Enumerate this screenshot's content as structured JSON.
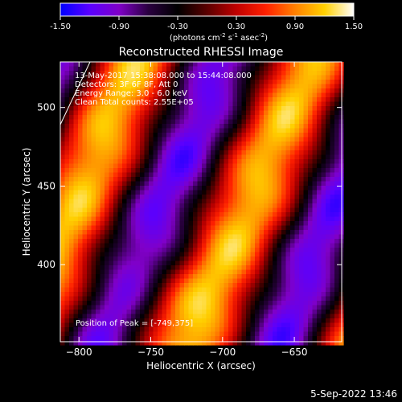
{
  "colorbar": {
    "min": -1.5,
    "max": 1.5,
    "ticks": [
      "-1.50",
      "-0.90",
      "-0.30",
      "0.30",
      "0.90",
      "1.50"
    ],
    "colormap": [
      "#0000ff",
      "#5a00ff",
      "#8000c8",
      "#2a0040",
      "#000000",
      "#5a0000",
      "#c00000",
      "#ff2000",
      "#ff8000",
      "#ffd000",
      "#ffffff"
    ],
    "unit_label": {
      "pre": "(photons cm",
      "exp1": "-2",
      "mid1": " s",
      "exp2": "-1",
      "mid2": " asec",
      "exp3": "-2",
      "post": ")"
    }
  },
  "chart_data": {
    "type": "heatmap",
    "title": "Reconstructed RHESSI Image",
    "xlabel": "Heliocentric X (arcsec)",
    "ylabel": "Heliocentric Y (arcsec)",
    "xlim": [
      -813,
      -617
    ],
    "ylim": [
      351,
      529
    ],
    "x_ticks": [
      -800,
      -750,
      -700,
      -650
    ],
    "y_ticks": [
      400,
      450,
      500
    ],
    "stripe_slope": 2.15,
    "stripe_phases": [
      -0.3,
      0.7,
      1.7
    ],
    "peak": {
      "x": -749,
      "y": 375,
      "value": 1.5
    },
    "annotations": [
      "13-May-2017 15:38:08.000 to 15:44:08.000",
      "Detectors: 3F 6F 8F, Att 0",
      "Energy Range: 3.0 - 6.0 keV",
      "Clean    Total counts: 2.55E+05"
    ],
    "peak_label": "Position of Peak = [-749,375]"
  },
  "footer": {
    "date": "5-Sep-2022 13:46"
  }
}
